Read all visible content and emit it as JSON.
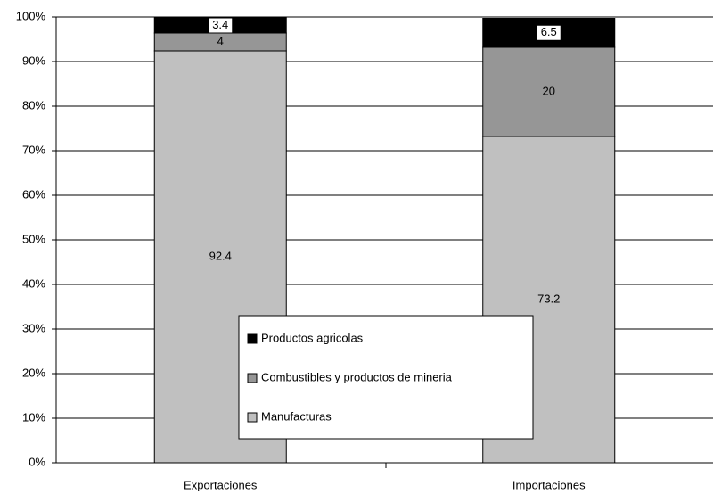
{
  "chart_data": {
    "type": "stacked_bar",
    "categories": [
      "Exportaciones",
      "Importaciones"
    ],
    "series": [
      {
        "name": "Manufacturas",
        "color": "#c0c0c0",
        "values": [
          92.4,
          73.2
        ]
      },
      {
        "name": "Combustibles y productos de mineria",
        "color": "#969696",
        "values": [
          4,
          20
        ]
      },
      {
        "name": "Productos agricolas",
        "color": "#000000",
        "values": [
          3.4,
          6.5
        ]
      }
    ],
    "ylim": [
      0,
      100
    ],
    "yticks": [
      {
        "value": 0,
        "label": "0%"
      },
      {
        "value": 10,
        "label": "10%"
      },
      {
        "value": 20,
        "label": "20%"
      },
      {
        "value": 30,
        "label": "30%"
      },
      {
        "value": 40,
        "label": "40%"
      },
      {
        "value": 50,
        "label": "50%"
      },
      {
        "value": 60,
        "label": "60%"
      },
      {
        "value": 70,
        "label": "70%"
      },
      {
        "value": 80,
        "label": "80%"
      },
      {
        "value": 90,
        "label": "90%"
      },
      {
        "value": 100,
        "label": "100%"
      }
    ],
    "grid": true,
    "legend_position": "lower center"
  }
}
